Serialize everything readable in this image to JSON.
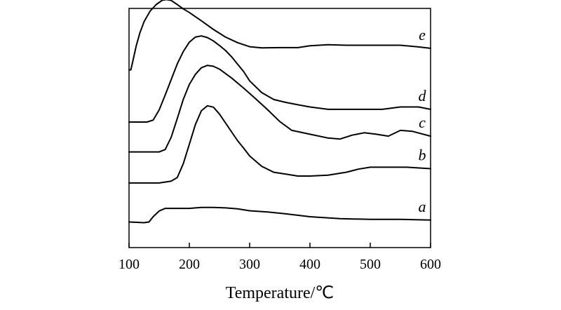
{
  "chart_data": {
    "type": "line",
    "xlabel": "Temperature/℃",
    "ylabel": "",
    "xlim": [
      100,
      600
    ],
    "ylim": [
      0,
      100
    ],
    "x_ticks": [
      100,
      200,
      300,
      400,
      500,
      600
    ],
    "y_ticks_shown": false,
    "grid": false,
    "series": [
      {
        "name": "a",
        "x": [
          100,
          110,
          125,
          133,
          140,
          150,
          160,
          180,
          200,
          220,
          240,
          260,
          280,
          300,
          330,
          360,
          400,
          450,
          500,
          550,
          600
        ],
        "y": [
          10.7,
          10.6,
          10.4,
          10.7,
          12.9,
          15.3,
          16.4,
          16.4,
          16.4,
          16.8,
          16.8,
          16.6,
          16.2,
          15.4,
          14.9,
          14.1,
          12.9,
          12.1,
          11.8,
          11.8,
          11.5
        ]
      },
      {
        "name": "b",
        "x": [
          100,
          150,
          170,
          180,
          190,
          200,
          210,
          220,
          230,
          240,
          250,
          260,
          270,
          280,
          290,
          300,
          320,
          340,
          360,
          380,
          400,
          430,
          460,
          480,
          500,
          530,
          560,
          600
        ],
        "y": [
          27.0,
          27.0,
          27.8,
          29.3,
          35.1,
          43.2,
          51.4,
          57.2,
          59.3,
          58.7,
          55.8,
          52.1,
          48.4,
          44.7,
          41.6,
          38.3,
          34.0,
          31.5,
          30.7,
          29.9,
          29.9,
          30.3,
          31.5,
          32.8,
          33.6,
          33.6,
          33.6,
          33.0
        ]
      },
      {
        "name": "c",
        "x": [
          100,
          150,
          160,
          170,
          180,
          190,
          200,
          210,
          220,
          230,
          240,
          250,
          270,
          290,
          310,
          330,
          350,
          370,
          400,
          430,
          450,
          470,
          490,
          510,
          530,
          550,
          570,
          600
        ],
        "y": [
          40.0,
          40.0,
          41.0,
          46.2,
          54.0,
          62.0,
          68.2,
          72.4,
          75.2,
          76.2,
          75.8,
          74.6,
          70.9,
          66.7,
          62.2,
          57.6,
          52.7,
          49.0,
          47.4,
          45.8,
          45.4,
          47.0,
          48.0,
          47.4,
          46.6,
          49.0,
          48.6,
          46.6
        ]
      },
      {
        "name": "d",
        "x": [
          100,
          130,
          140,
          150,
          160,
          170,
          180,
          190,
          200,
          210,
          220,
          230,
          240,
          250,
          260,
          270,
          280,
          290,
          300,
          320,
          340,
          360,
          380,
          400,
          430,
          460,
          490,
          520,
          550,
          580,
          600
        ],
        "y": [
          52.5,
          52.5,
          53.3,
          57.6,
          63.8,
          70.3,
          76.8,
          82.0,
          85.9,
          88.0,
          88.5,
          87.8,
          86.4,
          84.5,
          82.4,
          79.8,
          76.7,
          73.6,
          69.7,
          64.8,
          61.9,
          60.7,
          59.7,
          58.8,
          57.8,
          57.8,
          57.8,
          57.8,
          58.8,
          58.8,
          57.8
        ]
      },
      {
        "name": "e",
        "x": [
          100,
          103,
          107,
          112,
          118,
          125,
          135,
          145,
          155,
          162,
          170,
          180,
          190,
          200,
          220,
          240,
          260,
          280,
          300,
          320,
          350,
          380,
          400,
          430,
          460,
          490,
          520,
          550,
          580,
          600
        ],
        "y": [
          74.3,
          74.3,
          78.7,
          84.4,
          89.8,
          94.5,
          98.9,
          101.6,
          103.4,
          103.7,
          103.3,
          101.6,
          99.8,
          98.3,
          94.8,
          91.2,
          88.0,
          85.7,
          84.0,
          83.5,
          83.6,
          83.6,
          84.4,
          84.8,
          84.6,
          84.6,
          84.6,
          84.6,
          83.9,
          83.3
        ]
      }
    ],
    "series_labels_text": [
      "a",
      "b",
      "c",
      "d",
      "e"
    ],
    "x_tick_labels": [
      "100",
      "200",
      "300",
      "400",
      "500",
      "600"
    ]
  }
}
